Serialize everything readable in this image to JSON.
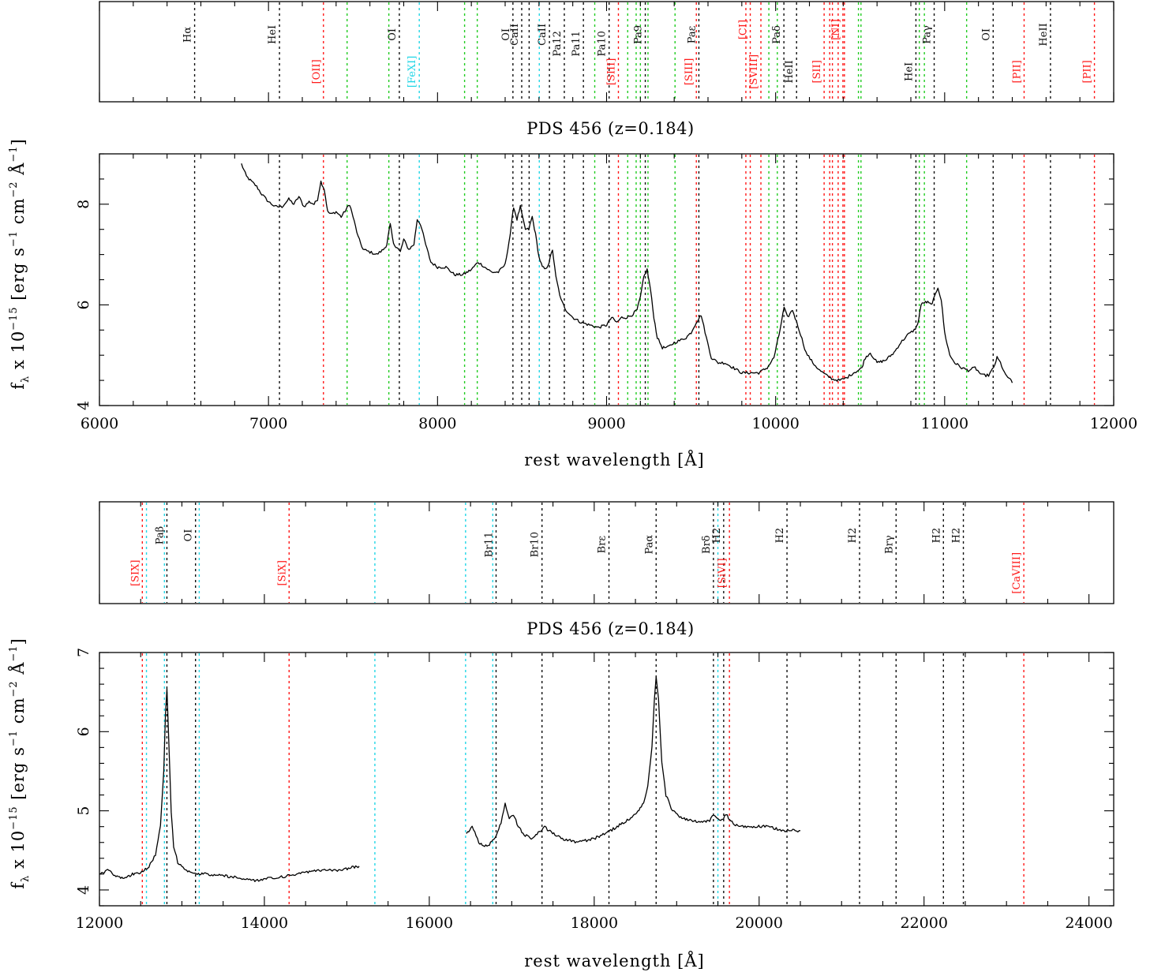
{
  "chart_data": [
    {
      "type": "line",
      "title": "PDS 456 (z=0.184)",
      "xlabel": "rest wavelength [Å]",
      "ylabel": "f_λ x 10^-15 [erg s^-1 cm^-2 Å^-1]",
      "ylabel_parts": {
        "f": "f",
        "lambda": "λ",
        "x10": "x 10",
        "exp": "−15",
        "unit": "[erg s",
        "m1": "−1",
        "cm": "cm",
        "m2": "−2",
        "A": "Å",
        "m3": "−1",
        "close": "]"
      },
      "xlim": [
        6000,
        12000
      ],
      "ylim": [
        4,
        9
      ],
      "xticks": [
        6000,
        7000,
        8000,
        9000,
        10000,
        11000,
        12000
      ],
      "yticks": [
        4,
        6,
        8
      ],
      "x_minor_step": 200,
      "y_minor_step": 0.5,
      "series": [
        {
          "x": [
            6840,
            6870,
            6900,
            6930,
            6960,
            7000,
            7040,
            7080,
            7120,
            7150,
            7180,
            7210,
            7240,
            7270,
            7290,
            7310,
            7330,
            7350,
            7370,
            7400,
            7430,
            7460,
            7480,
            7500,
            7530,
            7560,
            7600,
            7640,
            7680,
            7700,
            7720,
            7740,
            7760,
            7780,
            7800,
            7830,
            7860,
            7880,
            7900,
            7930,
            7960,
            8000,
            8050,
            8100,
            8150,
            8200,
            8240,
            8280,
            8320,
            8360,
            8400,
            8430,
            8450,
            8470,
            8490,
            8505,
            8520,
            8540,
            8560,
            8580,
            8600,
            8620,
            8640,
            8660,
            8680,
            8700,
            8730,
            8760,
            8800,
            8850,
            8900,
            8950,
            9000,
            9030,
            9060,
            9090,
            9120,
            9150,
            9180,
            9200,
            9220,
            9240,
            9260,
            9280,
            9300,
            9330,
            9360,
            9400,
            9440,
            9470,
            9500,
            9530,
            9560,
            9590,
            9620,
            9660,
            9700,
            9750,
            9800,
            9850,
            9900,
            9950,
            9990,
            10020,
            10050,
            10070,
            10100,
            10140,
            10180,
            10220,
            10260,
            10300,
            10340,
            10380,
            10420,
            10460,
            10490,
            10510,
            10530,
            10560,
            10600,
            10650,
            10700,
            10740,
            10780,
            10820,
            10840,
            10860,
            10880,
            10900,
            10920,
            10940,
            10960,
            10980,
            11000,
            11030,
            11060,
            11100,
            11140,
            11180,
            11220,
            11260,
            11290,
            11310,
            11330,
            11360,
            11380,
            11400
          ],
          "values": [
            8.8,
            8.55,
            8.45,
            8.35,
            8.2,
            8.05,
            7.95,
            7.95,
            8.1,
            8.0,
            8.15,
            7.95,
            8.05,
            8.0,
            8.1,
            8.45,
            8.3,
            7.85,
            7.8,
            7.85,
            7.75,
            7.9,
            8.0,
            7.75,
            7.35,
            7.1,
            7.05,
            7.0,
            7.1,
            7.2,
            7.6,
            7.2,
            7.15,
            7.05,
            7.3,
            7.1,
            7.2,
            7.7,
            7.6,
            7.2,
            6.85,
            6.75,
            6.75,
            6.6,
            6.6,
            6.7,
            6.85,
            6.75,
            6.65,
            6.65,
            6.8,
            7.4,
            7.95,
            7.7,
            7.95,
            7.7,
            7.5,
            7.5,
            7.75,
            7.4,
            6.95,
            6.75,
            6.7,
            6.85,
            7.1,
            6.55,
            6.1,
            5.9,
            5.75,
            5.65,
            5.6,
            5.55,
            5.6,
            5.75,
            5.65,
            5.75,
            5.75,
            5.8,
            5.9,
            6.15,
            6.55,
            6.7,
            6.3,
            5.75,
            5.35,
            5.15,
            5.15,
            5.25,
            5.3,
            5.35,
            5.45,
            5.65,
            5.8,
            5.35,
            4.95,
            4.85,
            4.85,
            4.75,
            4.65,
            4.65,
            4.65,
            4.75,
            4.95,
            5.4,
            5.95,
            5.75,
            5.9,
            5.5,
            5.05,
            4.85,
            4.7,
            4.6,
            4.52,
            4.5,
            4.55,
            4.65,
            4.7,
            4.75,
            4.95,
            5.05,
            4.85,
            4.9,
            5.05,
            5.25,
            5.4,
            5.5,
            5.6,
            6.0,
            6.05,
            6.05,
            6.0,
            6.15,
            6.35,
            6.1,
            5.45,
            5.0,
            4.85,
            4.75,
            4.7,
            4.75,
            4.6,
            4.6,
            4.75,
            4.95,
            4.85,
            4.6,
            4.55,
            4.45
          ]
        }
      ],
      "line_panel": {
        "ylim": [
          0,
          1
        ],
        "markers": [
          {
            "x": 6563,
            "color": "black",
            "label": "Hα",
            "pos": "high"
          },
          {
            "x": 7065,
            "color": "black",
            "label": "HeI",
            "pos": "high"
          },
          {
            "x": 7325,
            "color": "red",
            "label": "[OII]",
            "pos": "low"
          },
          {
            "x": 7465,
            "color": "green",
            "label": ""
          },
          {
            "x": 7712,
            "color": "green",
            "label": ""
          },
          {
            "x": 7774,
            "color": "black",
            "label": "OI",
            "pos": "high"
          },
          {
            "x": 7892,
            "color": "cyan",
            "label": "[FeXI]",
            "pos": "low"
          },
          {
            "x": 8160,
            "color": "green",
            "label": ""
          },
          {
            "x": 8235,
            "color": "green",
            "label": ""
          },
          {
            "x": 8446,
            "color": "black",
            "label": "OI",
            "pos": "high"
          },
          {
            "x": 8498,
            "color": "black",
            "label": "CaII",
            "pos": "high"
          },
          {
            "x": 8542,
            "color": "black",
            "label": "",
            "pos": "high"
          },
          {
            "x": 8602,
            "color": "cyan",
            "label": ""
          },
          {
            "x": 8662,
            "color": "black",
            "label": "CaII",
            "pos": "high"
          },
          {
            "x": 8750,
            "color": "black",
            "label": "Pa12",
            "pos": "mid"
          },
          {
            "x": 8863,
            "color": "black",
            "label": "Pa11",
            "pos": "mid"
          },
          {
            "x": 8930,
            "color": "green",
            "label": ""
          },
          {
            "x": 9015,
            "color": "black",
            "label": "Pa10",
            "pos": "mid"
          },
          {
            "x": 9070,
            "color": "red",
            "label": "[SIII]",
            "pos": "low"
          },
          {
            "x": 9125,
            "color": "green",
            "label": ""
          },
          {
            "x": 9175,
            "color": "green",
            "label": ""
          },
          {
            "x": 9200,
            "color": "green",
            "label": ""
          },
          {
            "x": 9229,
            "color": "black",
            "label": "Pa9",
            "pos": "high"
          },
          {
            "x": 9245,
            "color": "green",
            "label": ""
          },
          {
            "x": 9405,
            "color": "green",
            "label": ""
          },
          {
            "x": 9531,
            "color": "red",
            "label": "[SIII]",
            "pos": "low"
          },
          {
            "x": 9546,
            "color": "black",
            "label": "Paε",
            "pos": "high"
          },
          {
            "x": 9824,
            "color": "red",
            "label": "",
            "pos": "low"
          },
          {
            "x": 9850,
            "color": "red",
            "label": "[CI]",
            "pos": "top"
          },
          {
            "x": 9913,
            "color": "red",
            "label": "[SVIII]",
            "pos": "low"
          },
          {
            "x": 9960,
            "color": "green",
            "label": ""
          },
          {
            "x": 10010,
            "color": "green",
            "label": ""
          },
          {
            "x": 10049,
            "color": "black",
            "label": "Paδ",
            "pos": "high"
          },
          {
            "x": 10124,
            "color": "black",
            "label": "HeII",
            "pos": "low"
          },
          {
            "x": 10287,
            "color": "red",
            "label": "[SII]",
            "pos": "low"
          },
          {
            "x": 10320,
            "color": "red",
            "label": ""
          },
          {
            "x": 10336,
            "color": "red",
            "label": ""
          },
          {
            "x": 10370,
            "color": "red",
            "label": ""
          },
          {
            "x": 10398,
            "color": "red",
            "label": "[NI]",
            "pos": "top"
          },
          {
            "x": 10407,
            "color": "red",
            "label": ""
          },
          {
            "x": 10490,
            "color": "green",
            "label": ""
          },
          {
            "x": 10505,
            "color": "green",
            "label": ""
          },
          {
            "x": 10830,
            "color": "black",
            "label": "HeI",
            "pos": "low"
          },
          {
            "x": 10850,
            "color": "green",
            "label": ""
          },
          {
            "x": 10880,
            "color": "green",
            "label": ""
          },
          {
            "x": 10938,
            "color": "black",
            "label": "Paγ",
            "pos": "high"
          },
          {
            "x": 11130,
            "color": "green",
            "label": ""
          },
          {
            "x": 11287,
            "color": "black",
            "label": "OI",
            "pos": "high"
          },
          {
            "x": 11470,
            "color": "red",
            "label": "[PII]",
            "pos": "low"
          },
          {
            "x": 11626,
            "color": "black",
            "label": "HeII",
            "pos": "high"
          },
          {
            "x": 11886,
            "color": "red",
            "label": "[PII]",
            "pos": "low"
          }
        ]
      }
    },
    {
      "type": "line",
      "title": "PDS 456 (z=0.184)",
      "xlabel": "rest wavelength [Å]",
      "ylabel": "f_λ x 10^-15 [erg s^-1 cm^-2 Å^-1]",
      "ylabel_parts": {
        "f": "f",
        "lambda": "λ",
        "x10": "x 10",
        "exp": "−15",
        "unit": "[erg s",
        "m1": "−1",
        "cm": "cm",
        "m2": "−2",
        "A": "Å",
        "m3": "−1",
        "close": "]"
      },
      "xlim": [
        12000,
        24300
      ],
      "ylim": [
        3.8,
        7.0
      ],
      "xticks": [
        12000,
        14000,
        16000,
        18000,
        20000,
        22000,
        24000
      ],
      "yticks": [
        4,
        5,
        6,
        7
      ],
      "x_minor_step": 500,
      "y_minor_step": 0.2,
      "series": [
        {
          "x": [
            12000,
            12100,
            12200,
            12300,
            12400,
            12500,
            12600,
            12680,
            12740,
            12780,
            12800,
            12818,
            12840,
            12870,
            12900,
            12950,
            13000,
            13100,
            13200,
            13300,
            13500,
            13700,
            13900,
            14100,
            14300,
            14500,
            14700,
            14900,
            15050,
            15150
          ],
          "values": [
            4.2,
            4.25,
            4.18,
            4.15,
            4.2,
            4.22,
            4.3,
            4.45,
            4.8,
            5.5,
            6.2,
            6.55,
            5.9,
            5.0,
            4.55,
            4.35,
            4.3,
            4.22,
            4.2,
            4.2,
            4.18,
            4.15,
            4.12,
            4.15,
            4.18,
            4.22,
            4.25,
            4.25,
            4.28,
            4.3
          ]
        },
        {
          "x": [
            16450,
            16520,
            16600,
            16700,
            16800,
            16870,
            16920,
            16970,
            17020,
            17080,
            17150,
            17250,
            17350,
            17400,
            17450,
            17600,
            17800,
            18000,
            18200,
            18400,
            18500,
            18600,
            18650,
            18700,
            18730,
            18751,
            18780,
            18820,
            18870,
            18950,
            19050,
            19150,
            19300,
            19400,
            19450,
            19500,
            19550,
            19600,
            19700,
            19800,
            19950,
            20100,
            20300,
            20500
          ],
          "values": [
            4.7,
            4.8,
            4.6,
            4.55,
            4.65,
            4.85,
            5.1,
            4.9,
            4.95,
            4.8,
            4.7,
            4.65,
            4.75,
            4.8,
            4.75,
            4.65,
            4.6,
            4.65,
            4.75,
            4.88,
            4.95,
            5.1,
            5.3,
            5.8,
            6.4,
            6.7,
            6.4,
            5.6,
            5.2,
            5.0,
            4.92,
            4.88,
            4.85,
            4.88,
            4.95,
            4.9,
            4.88,
            4.95,
            4.82,
            4.8,
            4.8,
            4.8,
            4.75,
            4.75
          ]
        }
      ],
      "line_panel": {
        "ylim": [
          0,
          1
        ],
        "markers": [
          {
            "x": 12520,
            "color": "red",
            "label": "[SIX]",
            "pos": "low"
          },
          {
            "x": 12570,
            "color": "cyan",
            "label": ""
          },
          {
            "x": 12788,
            "color": "cyan",
            "label": ""
          },
          {
            "x": 12818,
            "color": "black",
            "label": "Paβ",
            "pos": "high"
          },
          {
            "x": 13165,
            "color": "black",
            "label": "OI",
            "pos": "high"
          },
          {
            "x": 13210,
            "color": "cyan",
            "label": ""
          },
          {
            "x": 14300,
            "color": "red",
            "label": "[SiX]",
            "pos": "low"
          },
          {
            "x": 15340,
            "color": "cyan",
            "label": ""
          },
          {
            "x": 16440,
            "color": "cyan",
            "label": ""
          },
          {
            "x": 16770,
            "color": "cyan",
            "label": ""
          },
          {
            "x": 16810,
            "color": "black",
            "label": "Br11",
            "pos": "mid"
          },
          {
            "x": 17367,
            "color": "black",
            "label": "Br10",
            "pos": "mid"
          },
          {
            "x": 18179,
            "color": "black",
            "label": "Brε",
            "pos": "mid"
          },
          {
            "x": 18751,
            "color": "black",
            "label": "Paα",
            "pos": "mid"
          },
          {
            "x": 19446,
            "color": "black",
            "label": "Brδ",
            "pos": "mid"
          },
          {
            "x": 19500,
            "color": "cyan",
            "label": ""
          },
          {
            "x": 19570,
            "color": "black",
            "label": "H2",
            "pos": "high"
          },
          {
            "x": 19640,
            "color": "red",
            "label": "[SiVI]",
            "pos": "low"
          },
          {
            "x": 20338,
            "color": "black",
            "label": "H2",
            "pos": "high"
          },
          {
            "x": 21218,
            "color": "black",
            "label": "H2",
            "pos": "high"
          },
          {
            "x": 21661,
            "color": "black",
            "label": "Brγ",
            "pos": "mid"
          },
          {
            "x": 22235,
            "color": "black",
            "label": "H2",
            "pos": "high"
          },
          {
            "x": 22477,
            "color": "black",
            "label": "H2",
            "pos": "high"
          },
          {
            "x": 23210,
            "color": "red",
            "label": "[CaVIII]",
            "pos": "low"
          }
        ]
      }
    }
  ],
  "colors": {
    "black": "#111111",
    "red": "#ff1a1a",
    "green": "#22cc22",
    "cyan": "#22d6e6"
  }
}
